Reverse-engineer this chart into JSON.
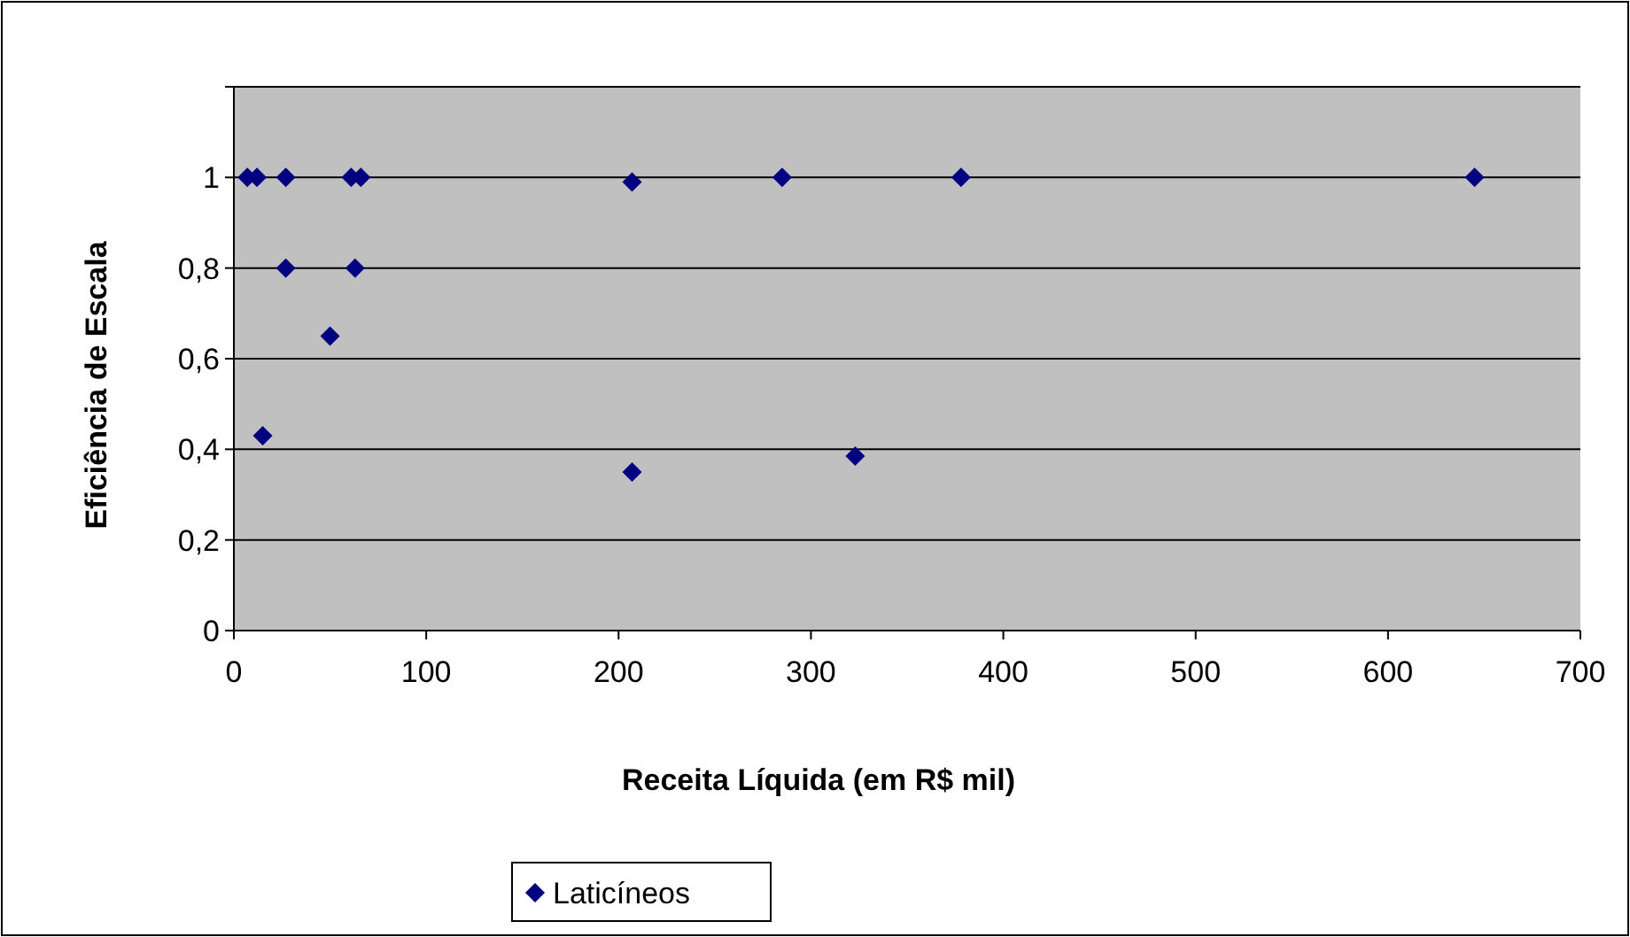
{
  "chart_data": {
    "type": "scatter",
    "xlabel": "Receita Líquida (em R$ mil)",
    "ylabel": "Eficiência de Escala",
    "xlim": [
      0,
      700
    ],
    "xticks": [
      0,
      100,
      200,
      300,
      400,
      500,
      600,
      700
    ],
    "ylim": [
      0,
      1.2
    ],
    "yticks": [
      0,
      {
        "value": 0.2,
        "label": "0,2"
      },
      {
        "value": 0.4,
        "label": "0,4"
      },
      {
        "value": 0.6,
        "label": "0,6"
      },
      {
        "value": 0.8,
        "label": "0,8"
      },
      1,
      {
        "value": 1.2,
        "label": null
      }
    ],
    "grid": "y",
    "legend": "bottom",
    "marker": "diamond",
    "series": [
      {
        "name": "Laticíneos",
        "color": "#000080",
        "x": [
          7,
          12,
          27,
          61,
          66,
          207,
          27,
          63,
          50,
          15,
          207,
          285,
          378,
          645,
          323
        ],
        "values": [
          1,
          1,
          1,
          1,
          1,
          0.99,
          0.8,
          0.8,
          0.65,
          0.43,
          0.35,
          1,
          1,
          1,
          0.385
        ]
      }
    ]
  }
}
